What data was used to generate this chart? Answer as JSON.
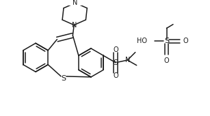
{
  "bg_color": "#ffffff",
  "line_color": "#1a1a1a",
  "lw": 1.1,
  "fig_width": 3.07,
  "fig_height": 1.7,
  "dpi": 100,
  "xlim": [
    0,
    307
  ],
  "ylim": [
    0,
    170
  ]
}
